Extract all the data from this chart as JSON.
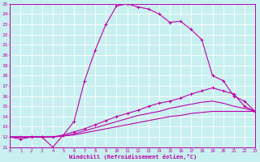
{
  "xlabel": "Windchill (Refroidissement éolien,°C)",
  "bg_color": "#c8f0f0",
  "grid_color": "#ffffff",
  "line_color": "#bb00aa",
  "xmin": 0,
  "xmax": 23,
  "ymin": 11,
  "ymax": 25,
  "series": [
    {
      "x": [
        0,
        1,
        2,
        3,
        4,
        5,
        6,
        7,
        8,
        9,
        10,
        11,
        12,
        13,
        14,
        15,
        16,
        17,
        18,
        19,
        20,
        21,
        22,
        23
      ],
      "y": [
        12.0,
        11.8,
        12.0,
        12.0,
        11.0,
        12.2,
        13.5,
        17.5,
        20.5,
        23.0,
        24.8,
        25.0,
        24.7,
        24.5,
        24.0,
        23.2,
        23.3,
        22.5,
        21.5,
        18.0,
        17.5,
        16.0,
        15.5,
        14.5
      ],
      "marker": true
    },
    {
      "x": [
        0,
        1,
        2,
        3,
        4,
        5,
        6,
        7,
        8,
        9,
        10,
        11,
        12,
        13,
        14,
        15,
        16,
        17,
        18,
        19,
        20,
        21,
        22,
        23
      ],
      "y": [
        12.0,
        12.0,
        12.0,
        12.0,
        12.0,
        12.2,
        12.5,
        12.8,
        13.2,
        13.6,
        14.0,
        14.3,
        14.6,
        15.0,
        15.3,
        15.5,
        15.8,
        16.2,
        16.5,
        16.8,
        16.5,
        16.2,
        15.0,
        14.5
      ],
      "marker": true
    },
    {
      "x": [
        0,
        1,
        2,
        3,
        4,
        5,
        6,
        7,
        8,
        9,
        10,
        11,
        12,
        13,
        14,
        15,
        16,
        17,
        18,
        19,
        20,
        21,
        22,
        23
      ],
      "y": [
        12.0,
        12.0,
        12.0,
        12.0,
        12.0,
        12.1,
        12.3,
        12.6,
        12.9,
        13.2,
        13.5,
        13.8,
        14.1,
        14.3,
        14.5,
        14.8,
        15.0,
        15.2,
        15.4,
        15.5,
        15.3,
        15.0,
        14.8,
        14.5
      ],
      "marker": false
    },
    {
      "x": [
        0,
        1,
        2,
        3,
        4,
        5,
        6,
        7,
        8,
        9,
        10,
        11,
        12,
        13,
        14,
        15,
        16,
        17,
        18,
        19,
        20,
        21,
        22,
        23
      ],
      "y": [
        12.0,
        12.0,
        12.0,
        12.0,
        12.0,
        12.1,
        12.2,
        12.4,
        12.6,
        12.8,
        13.0,
        13.2,
        13.4,
        13.6,
        13.8,
        14.0,
        14.1,
        14.3,
        14.4,
        14.5,
        14.5,
        14.5,
        14.5,
        14.5
      ],
      "marker": false
    }
  ]
}
